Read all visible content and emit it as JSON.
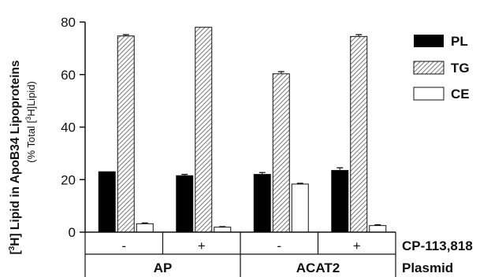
{
  "chart_data": {
    "type": "bar",
    "ylabel_main": "Lipid in ApoB34 Lipoproteins",
    "ylabel_main_prefix": "[",
    "ylabel_main_sup": "3",
    "ylabel_main_mid": "H]",
    "ylabel_sub_prefix": "(% Total [",
    "ylabel_sub_sup": "3",
    "ylabel_sub_suffix": "H]Lipid)",
    "ylim": [
      0,
      80
    ],
    "yticks": [
      "0",
      "20",
      "40",
      "60",
      "80"
    ],
    "categories": [
      "AP -",
      "AP +",
      "ACAT2 -",
      "ACAT2 +"
    ],
    "series": [
      {
        "name": "PL",
        "pattern": "solid",
        "color": "#000000",
        "values": [
          23.0,
          21.5,
          22.0,
          23.5
        ],
        "errors": [
          0,
          0.5,
          0.7,
          1.0
        ]
      },
      {
        "name": "TG",
        "pattern": "hatch",
        "color": "#888888",
        "values": [
          74.7,
          78.0,
          60.3,
          74.5
        ],
        "errors": [
          0.5,
          0,
          0.8,
          0.7
        ]
      },
      {
        "name": "CE",
        "pattern": "open",
        "color": "#ffffff",
        "values": [
          3.2,
          1.9,
          18.3,
          2.5
        ],
        "errors": [
          0.3,
          0.2,
          0.3,
          0.3
        ]
      }
    ],
    "table": {
      "row1_label": "CP-113,818",
      "row1_values": [
        "-",
        "+",
        "-",
        "+"
      ],
      "row2_label": "Plasmid",
      "row2_values": [
        "AP",
        "ACAT2"
      ]
    }
  }
}
